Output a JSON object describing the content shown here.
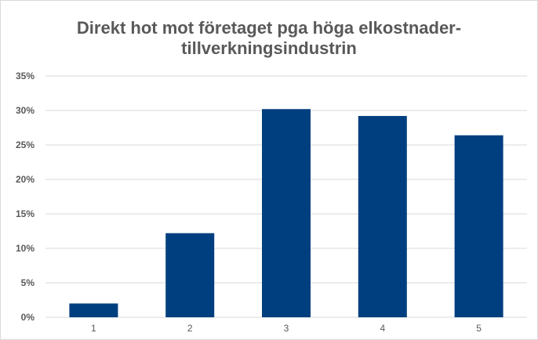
{
  "chart_data": {
    "type": "bar",
    "title_line1": "Direkt hot mot företaget pga höga elkostnader-",
    "title_line2": "tillverkningsindustrin",
    "xlabel": "",
    "ylabel": "",
    "categories": [
      "1",
      "2",
      "3",
      "4",
      "5"
    ],
    "values": [
      0.02,
      0.122,
      0.302,
      0.292,
      0.264
    ],
    "ylim": [
      0,
      0.35
    ],
    "yticks": [
      {
        "value": 0,
        "label": "0%"
      },
      {
        "value": 0.05,
        "label": "5%"
      },
      {
        "value": 0.1,
        "label": "10%"
      },
      {
        "value": 0.15,
        "label": "15%"
      },
      {
        "value": 0.2,
        "label": "20%"
      },
      {
        "value": 0.25,
        "label": "25%"
      },
      {
        "value": 0.3,
        "label": "30%"
      },
      {
        "value": 0.35,
        "label": "35%"
      }
    ],
    "grid": true,
    "legend": "none",
    "colors": {
      "bar": "#003f7f",
      "grid": "#d9d9d9",
      "text": "#595959"
    }
  }
}
